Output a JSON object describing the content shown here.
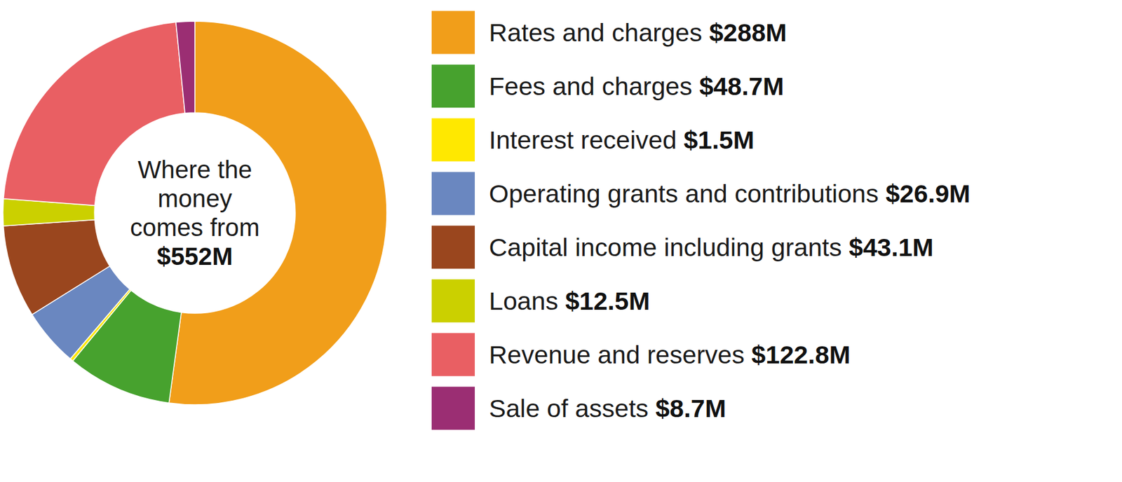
{
  "chart_data": {
    "type": "donut",
    "title": "Where the money comes from",
    "annotations": [
      "$552M"
    ],
    "categories": [
      "Rates and charges",
      "Fees and charges",
      "Interest received",
      "Operating grants and contributions",
      "Capital income including grants",
      "Loans",
      "Revenue and reserves",
      "Sale of assets"
    ],
    "values": [
      288,
      48.7,
      1.5,
      26.9,
      43.1,
      12.5,
      122.8,
      8.7
    ],
    "value_labels": [
      "$288M",
      "$48.7M",
      "$1.5M",
      "$26.9M",
      "$43.1M",
      "$12.5M",
      "$122.8M",
      "$8.7M"
    ],
    "colors": [
      "#f19e1a",
      "#47a22e",
      "#ffe800",
      "#6a87c0",
      "#9a461e",
      "#cbd000",
      "#e95f63",
      "#9b2e73"
    ],
    "legend": "right"
  }
}
